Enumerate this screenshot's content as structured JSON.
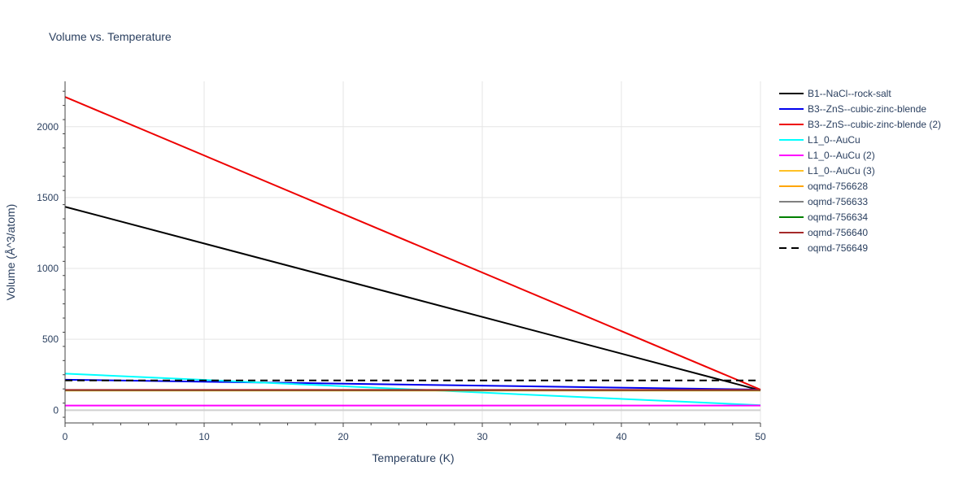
{
  "chart_data": {
    "type": "line",
    "title": "Volume vs. Temperature",
    "xlabel": "Temperature (K)",
    "ylabel": "Volume (Å^3/atom)",
    "xlim": [
      0,
      50
    ],
    "ylim": [
      -90,
      2320
    ],
    "xticks": [
      0,
      10,
      20,
      30,
      40,
      50
    ],
    "yticks": [
      0,
      500,
      1000,
      1500,
      2000
    ],
    "grid": true,
    "legend_position": "right",
    "series": [
      {
        "name": "B1--NaCl--rock-salt",
        "color": "#000000",
        "dash": "solid",
        "x": [
          0,
          50
        ],
        "y": [
          1435,
          140
        ]
      },
      {
        "name": "B3--ZnS--cubic-zinc-blende",
        "color": "#0000ee",
        "dash": "solid",
        "x": [
          0,
          50
        ],
        "y": [
          215,
          145
        ]
      },
      {
        "name": "B3--ZnS--cubic-zinc-blende (2)",
        "color": "#ee0000",
        "dash": "solid",
        "x": [
          0,
          50
        ],
        "y": [
          2210,
          145
        ]
      },
      {
        "name": "L1_0--AuCu",
        "color": "#00ffff",
        "dash": "solid",
        "x": [
          0,
          50
        ],
        "y": [
          258,
          35
        ]
      },
      {
        "name": "L1_0--AuCu (2)",
        "color": "#ff00ff",
        "dash": "solid",
        "x": [
          0,
          50
        ],
        "y": [
          33,
          33
        ]
      },
      {
        "name": "L1_0--AuCu (3)",
        "color": "#ffc125",
        "dash": "solid",
        "x": [
          0,
          50
        ],
        "y": [
          138,
          138
        ]
      },
      {
        "name": "oqmd-756628",
        "color": "#ffa500",
        "dash": "solid",
        "x": [
          0,
          50
        ],
        "y": [
          140,
          140
        ]
      },
      {
        "name": "oqmd-756633",
        "color": "#808080",
        "dash": "solid",
        "x": [
          0,
          50
        ],
        "y": [
          141,
          141
        ]
      },
      {
        "name": "oqmd-756634",
        "color": "#008000",
        "dash": "solid",
        "x": [
          0,
          50
        ],
        "y": [
          142,
          142
        ]
      },
      {
        "name": "oqmd-756640",
        "color": "#a52a2a",
        "dash": "solid",
        "x": [
          0,
          50
        ],
        "y": [
          143,
          143
        ]
      },
      {
        "name": "oqmd-756649",
        "color": "#000000",
        "dash": "dash",
        "x": [
          0,
          50
        ],
        "y": [
          210,
          210
        ]
      }
    ]
  }
}
